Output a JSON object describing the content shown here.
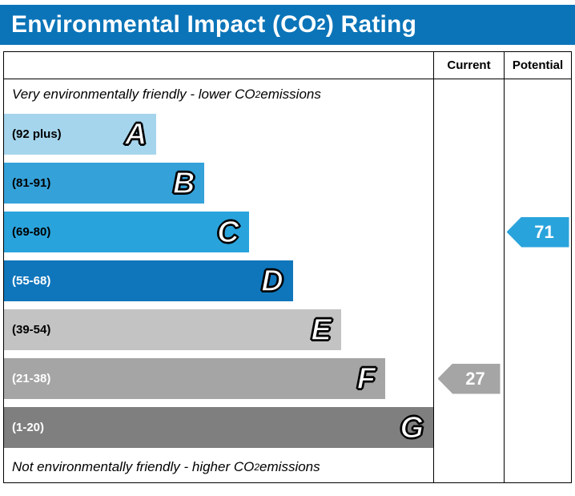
{
  "title": {
    "prefix": "Environmental Impact (CO",
    "subscript": "2",
    "suffix": ") Rating"
  },
  "header": {
    "current": "Current",
    "potential": "Potential"
  },
  "notes": {
    "top": {
      "prefix": "Very environmentally friendly - lower CO",
      "subscript": "2",
      "suffix": " emissions"
    },
    "bottom": {
      "prefix": "Not environmentally friendly - higher CO",
      "subscript": "2",
      "suffix": " emissions"
    }
  },
  "chart_data": {
    "type": "bar",
    "title": "Environmental Impact (CO2) Rating",
    "bands": [
      {
        "letter": "A",
        "range": "(92 plus)",
        "color": "#a5d5ec",
        "text_color": "#000000",
        "width_pct": 35.5
      },
      {
        "letter": "B",
        "range": "(81-91)",
        "color": "#35a1d9",
        "text_color": "#000000",
        "width_pct": 46.7
      },
      {
        "letter": "C",
        "range": "(69-80)",
        "color": "#29a3dc",
        "text_color": "#000000",
        "width_pct": 57.0
      },
      {
        "letter": "D",
        "range": "(55-68)",
        "color": "#0f76bc",
        "text_color": "#ffffff",
        "width_pct": 67.3
      },
      {
        "letter": "E",
        "range": "(39-54)",
        "color": "#c3c3c3",
        "text_color": "#000000",
        "width_pct": 78.5
      },
      {
        "letter": "F",
        "range": "(21-38)",
        "color": "#a5a5a5",
        "text_color": "#ffffff",
        "width_pct": 88.8
      },
      {
        "letter": "G",
        "range": "(1-20)",
        "color": "#7f7f7f",
        "text_color": "#ffffff",
        "width_pct": 100
      }
    ],
    "current": {
      "value": "27",
      "band": "F",
      "band_index": 5,
      "color": "#a5a5a5"
    },
    "potential": {
      "value": "71",
      "band": "C",
      "band_index": 2,
      "color": "#29a3dc"
    }
  },
  "colors": {
    "title_bg": "#0b74b8",
    "border": "#000000"
  }
}
